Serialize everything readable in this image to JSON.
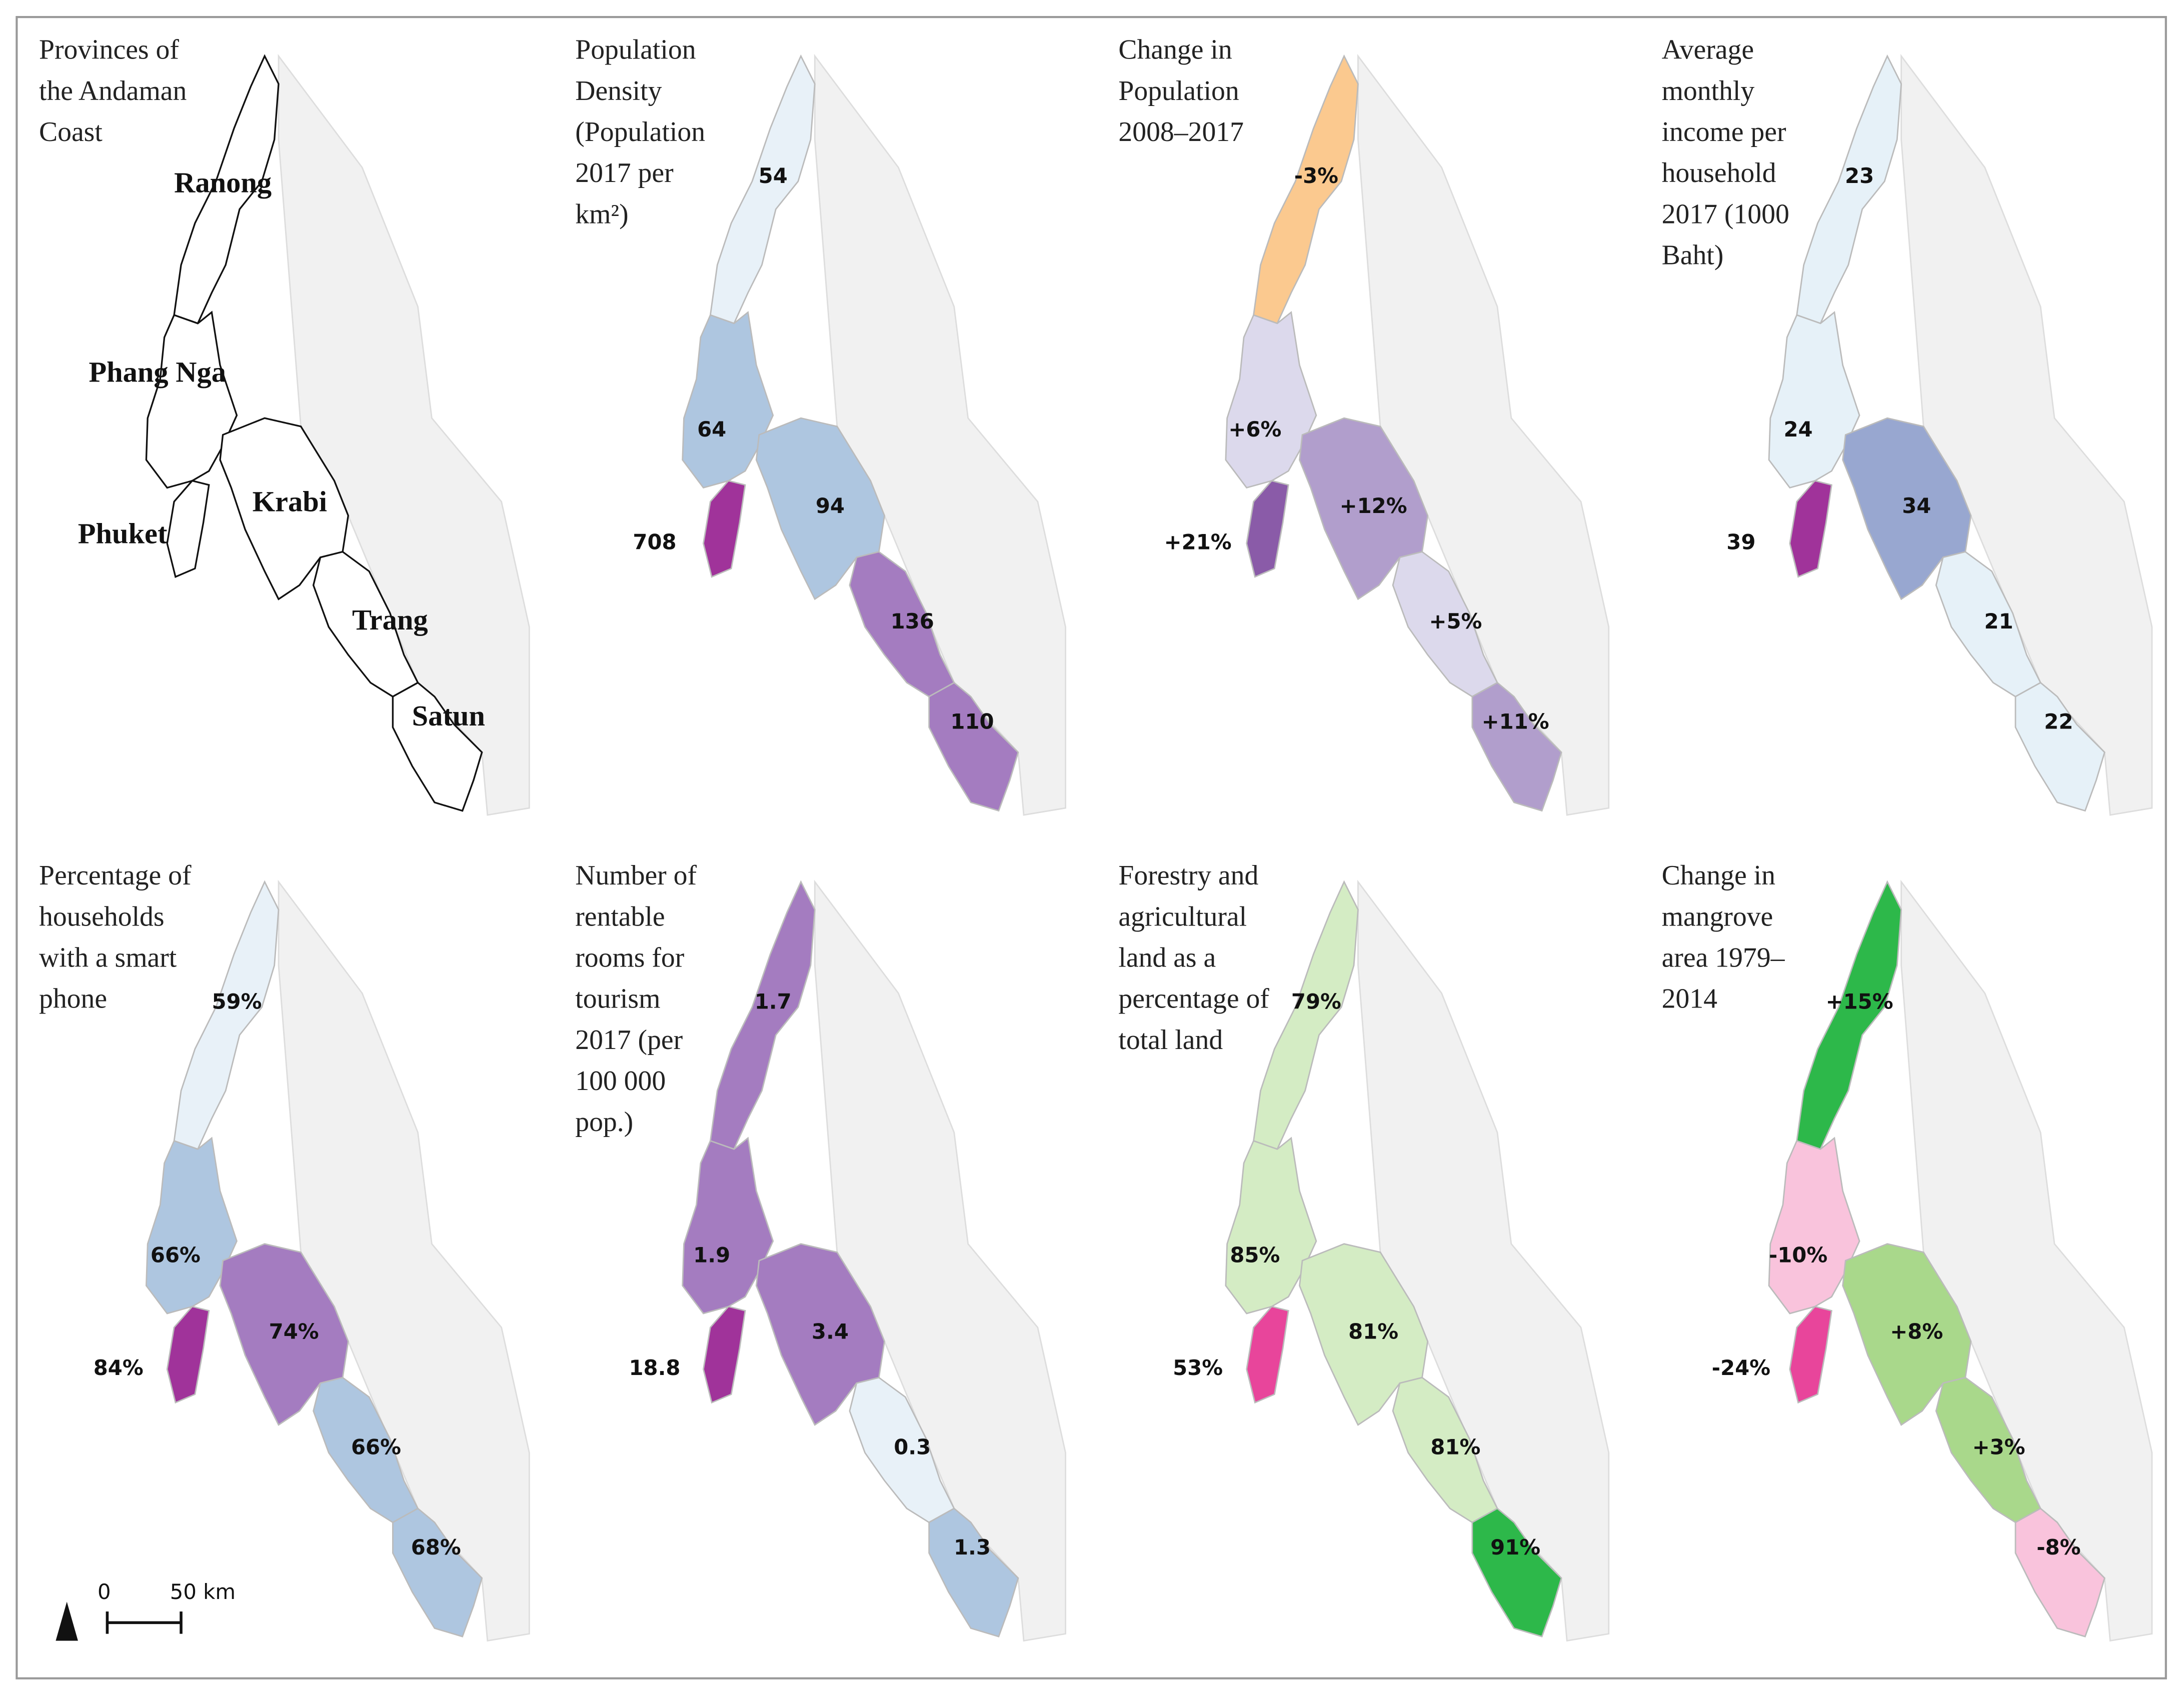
{
  "panels": [
    {
      "title_lines": [
        "Provinces of",
        "the Andaman",
        "Coast"
      ],
      "labels": [
        "Ranong",
        "Phang Nga",
        "Phuket",
        "Krabi",
        "Trang",
        "Satun"
      ],
      "colors": [
        "#ffffff",
        "#ffffff",
        "#ffffff",
        "#ffffff",
        "#ffffff",
        "#ffffff"
      ]
    },
    {
      "title_lines": [
        "Population",
        "Density",
        "(Population",
        "2017 per",
        "km²)"
      ],
      "labels": [
        "54",
        "64",
        "708",
        "94",
        "136",
        "110"
      ],
      "colors": [
        "#e8f1f8",
        "#aec6e0",
        "#a0339a",
        "#aec6e0",
        "#a47cc0",
        "#a47cc0"
      ]
    },
    {
      "title_lines": [
        "Change in",
        "Population",
        "2008–2017"
      ],
      "labels": [
        "-3%",
        "+6%",
        "+21%",
        "+12%",
        "+5%",
        "+11%"
      ],
      "colors": [
        "#fbc98f",
        "#dcd9ec",
        "#8a5ba8",
        "#b19ecc",
        "#dcd9ec",
        "#b19ecc"
      ]
    },
    {
      "title_lines": [
        "Average",
        "monthly",
        "income per",
        "household",
        "2017 (1000",
        "Baht)"
      ],
      "labels": [
        "23",
        "24",
        "39",
        "34",
        "21",
        "22"
      ],
      "colors": [
        "#e6f1f8",
        "#e6f1f8",
        "#a0339a",
        "#98a7d0",
        "#e6f1f8",
        "#e6f1f8"
      ]
    },
    {
      "title_lines": [
        "Percentage of",
        "households",
        "with a smart",
        "phone"
      ],
      "labels": [
        "59%",
        "66%",
        "84%",
        "74%",
        "66%",
        "68%"
      ],
      "colors": [
        "#e8f1f8",
        "#aec6e0",
        "#a0339a",
        "#a47cc0",
        "#aec6e0",
        "#aec6e0"
      ]
    },
    {
      "title_lines": [
        "Number of",
        "rentable",
        "rooms for",
        "tourism",
        "2017 (per",
        "100 000",
        "pop.)"
      ],
      "labels": [
        "1.7",
        "1.9",
        "18.8",
        "3.4",
        "0.3",
        "1.3"
      ],
      "colors": [
        "#a47cc0",
        "#a47cc0",
        "#a0339a",
        "#a47cc0",
        "#e8f1f8",
        "#aec6e0"
      ]
    },
    {
      "title_lines": [
        "Forestry and",
        "agricultural",
        "land as a",
        "percentage of",
        "total land"
      ],
      "labels": [
        "79%",
        "85%",
        "53%",
        "81%",
        "81%",
        "91%"
      ],
      "colors": [
        "#d4ecc4",
        "#d4ecc4",
        "#e8459b",
        "#d4ecc4",
        "#d4ecc4",
        "#2db84a"
      ]
    },
    {
      "title_lines": [
        "Change in",
        "mangrove",
        "area 1979–",
        "2014"
      ],
      "labels": [
        "+15%",
        "-10%",
        "-24%",
        "+8%",
        "+3%",
        "-8%"
      ],
      "colors": [
        "#2db84a",
        "#f9c3dc",
        "#e8459b",
        "#a9d88b",
        "#a9d88b",
        "#f9c3dc"
      ]
    }
  ],
  "scale_bar": {
    "start": "0",
    "label": "50 km"
  }
}
